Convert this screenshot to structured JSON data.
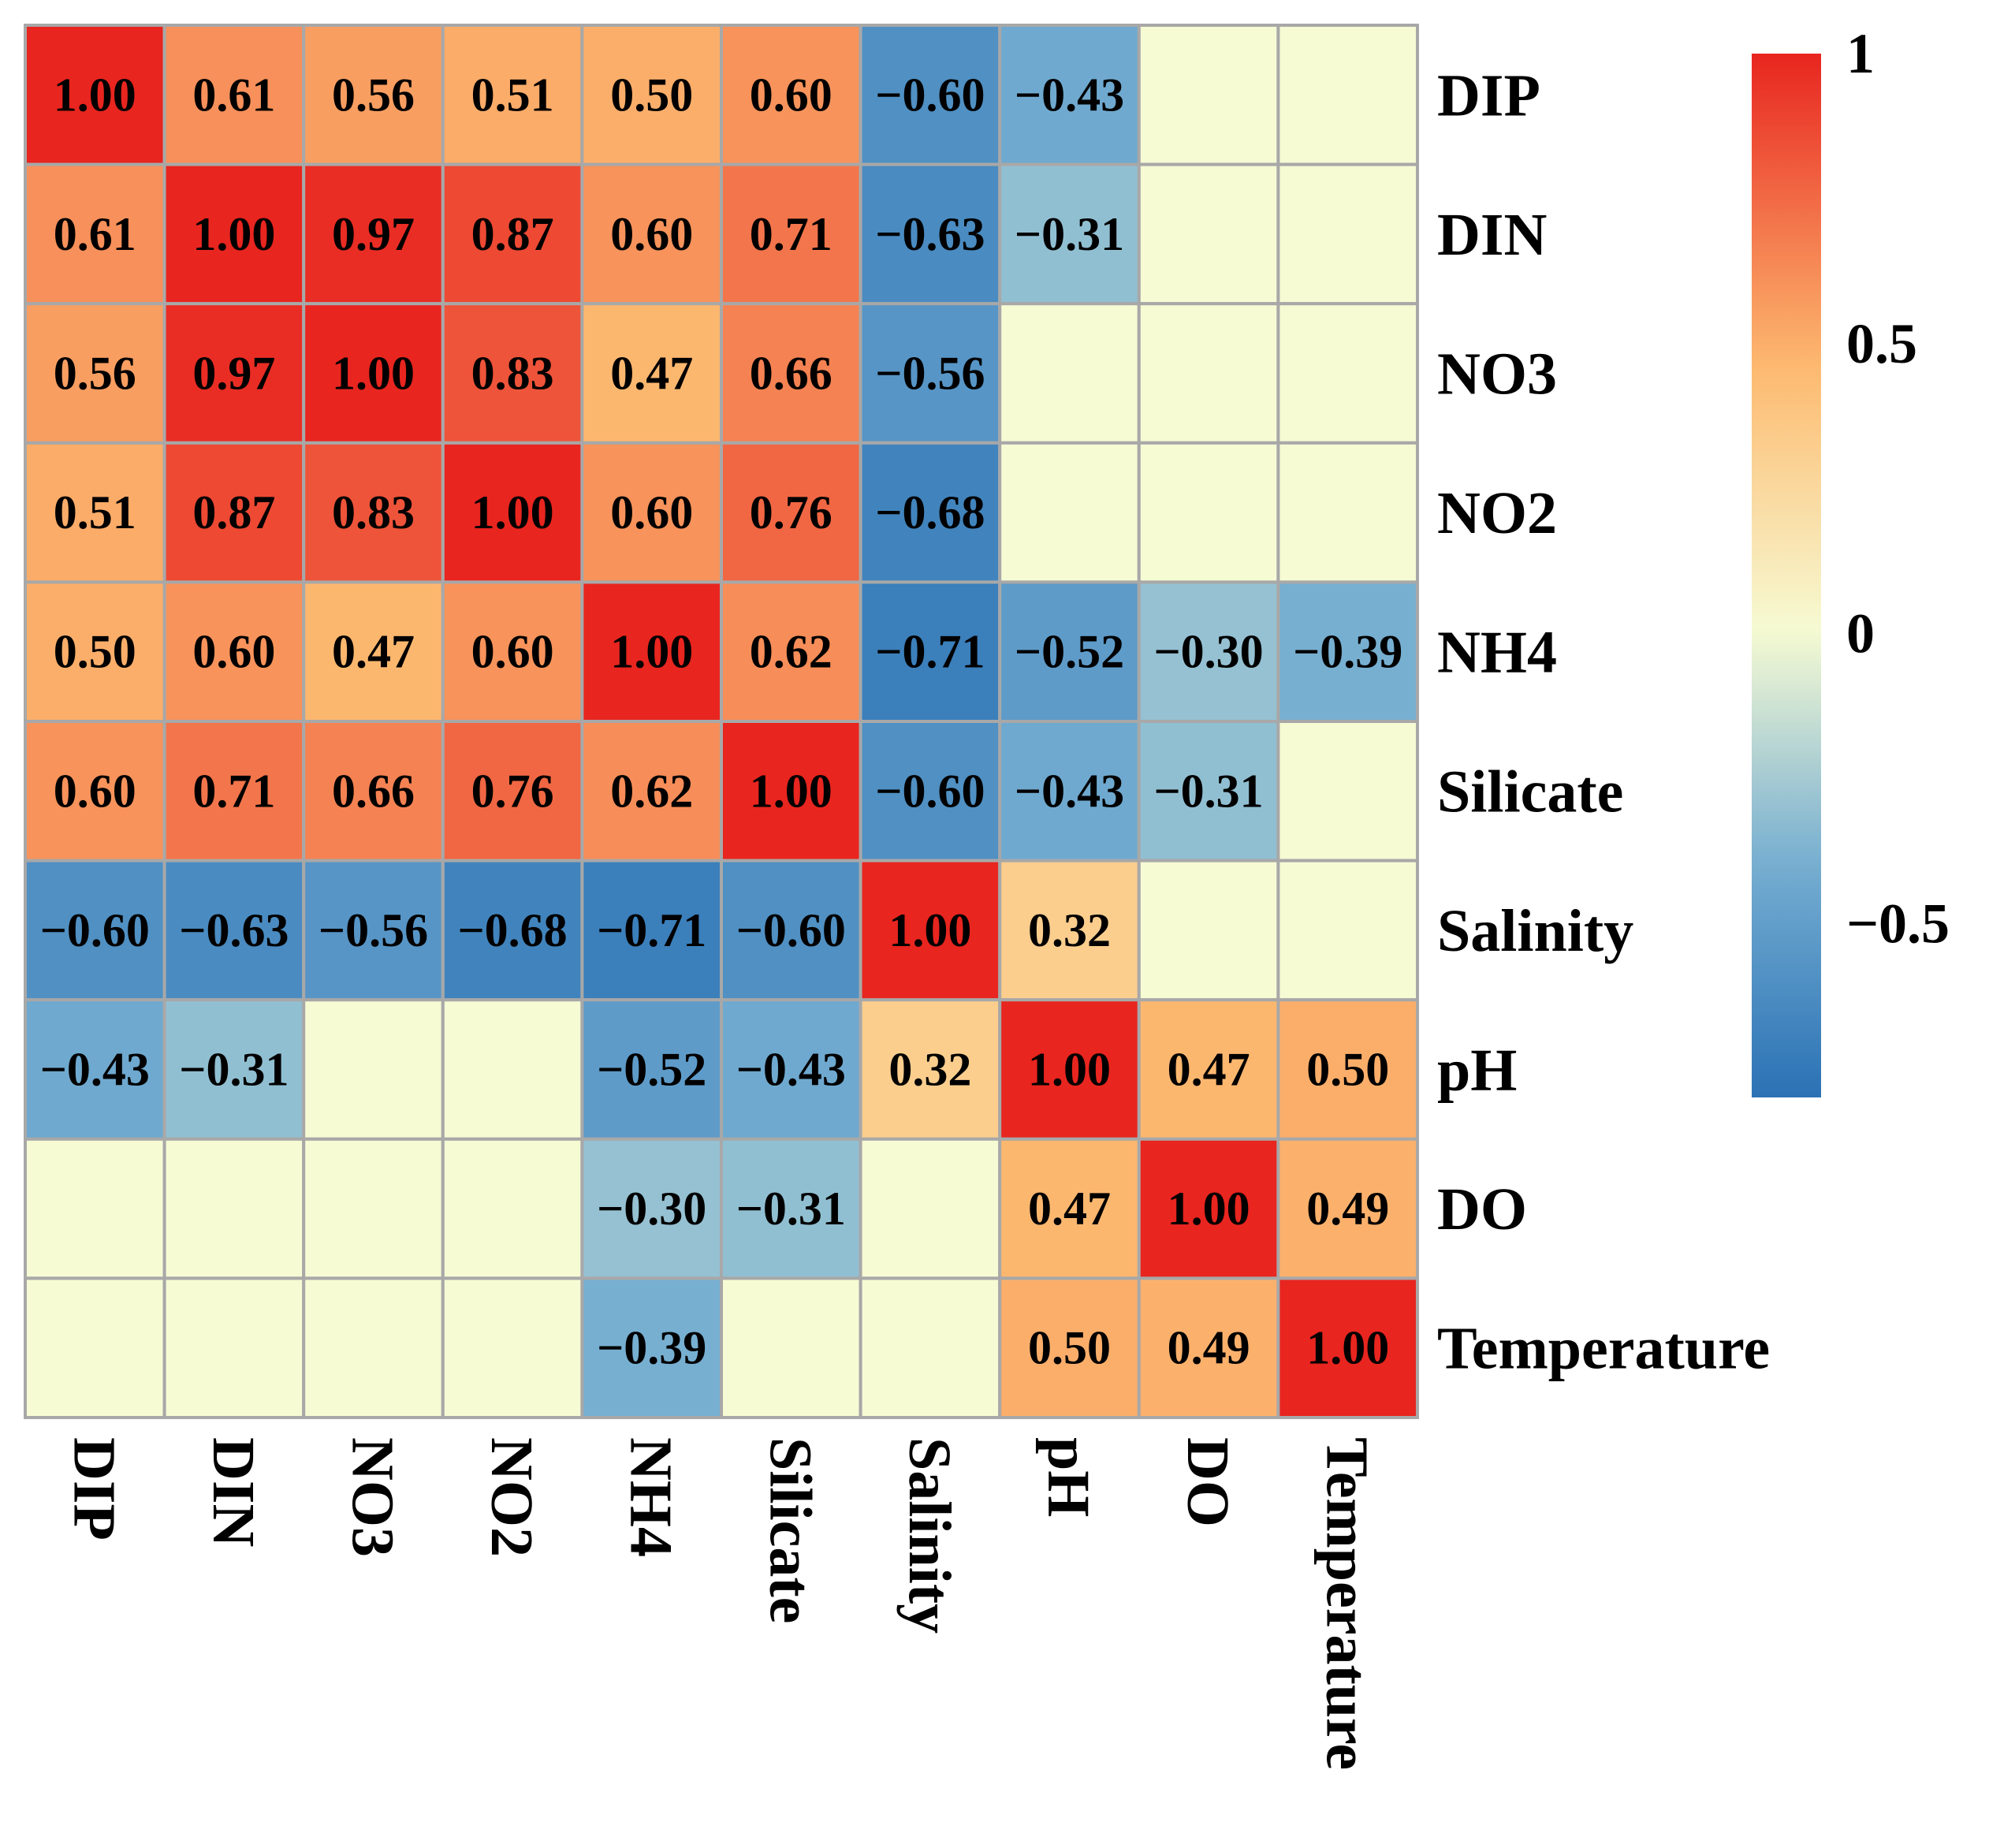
{
  "chart_data": {
    "type": "heatmap",
    "title": "",
    "variables": [
      "DIP",
      "DIN",
      "NO3",
      "NO2",
      "NH4",
      "Silicate",
      "Salinity",
      "pH",
      "DO",
      "Temperature"
    ],
    "matrix": [
      [
        1.0,
        0.61,
        0.56,
        0.51,
        0.5,
        0.6,
        -0.6,
        -0.43,
        null,
        null
      ],
      [
        0.61,
        1.0,
        0.97,
        0.87,
        0.6,
        0.71,
        -0.63,
        -0.31,
        null,
        null
      ],
      [
        0.56,
        0.97,
        1.0,
        0.83,
        0.47,
        0.66,
        -0.56,
        null,
        null,
        null
      ],
      [
        0.51,
        0.87,
        0.83,
        1.0,
        0.6,
        0.76,
        -0.68,
        null,
        null,
        null
      ],
      [
        0.5,
        0.6,
        0.47,
        0.6,
        1.0,
        0.62,
        -0.71,
        -0.52,
        -0.3,
        -0.39
      ],
      [
        0.6,
        0.71,
        0.66,
        0.76,
        0.62,
        1.0,
        -0.6,
        -0.43,
        -0.31,
        null
      ],
      [
        -0.6,
        -0.63,
        -0.56,
        -0.68,
        -0.71,
        -0.6,
        1.0,
        0.32,
        null,
        null
      ],
      [
        -0.43,
        -0.31,
        null,
        null,
        -0.52,
        -0.43,
        0.32,
        1.0,
        0.47,
        0.5
      ],
      [
        null,
        null,
        null,
        null,
        -0.3,
        -0.31,
        null,
        0.47,
        1.0,
        0.49
      ],
      [
        null,
        null,
        null,
        null,
        -0.39,
        null,
        null,
        0.5,
        0.49,
        1.0
      ]
    ],
    "cell_labels": [
      [
        "1.00",
        "0.61",
        "0.56",
        "0.51",
        "0.50",
        "0.60",
        "−0.60",
        "−0.43",
        "",
        ""
      ],
      [
        "0.61",
        "1.00",
        "0.97",
        "0.87",
        "0.60",
        "0.71",
        "−0.63",
        "−0.31",
        "",
        ""
      ],
      [
        "0.56",
        "0.97",
        "1.00",
        "0.83",
        "0.47",
        "0.66",
        "−0.56",
        "",
        "",
        ""
      ],
      [
        "0.51",
        "0.87",
        "0.83",
        "1.00",
        "0.60",
        "0.76",
        "−0.68",
        "",
        "",
        ""
      ],
      [
        "0.50",
        "0.60",
        "0.47",
        "0.60",
        "1.00",
        "0.62",
        "−0.71",
        "−0.52",
        "−0.30",
        "−0.39"
      ],
      [
        "0.60",
        "0.71",
        "0.66",
        "0.76",
        "0.62",
        "1.00",
        "−0.60",
        "−0.43",
        "−0.31",
        ""
      ],
      [
        "−0.60",
        "−0.63",
        "−0.56",
        "−0.68",
        "−0.71",
        "−0.60",
        "1.00",
        "0.32",
        "",
        ""
      ],
      [
        "−0.43",
        "−0.31",
        "",
        "",
        "−0.52",
        "−0.43",
        "0.32",
        "1.00",
        "0.47",
        "0.50"
      ],
      [
        "",
        "",
        "",
        "",
        "−0.30",
        "−0.31",
        "",
        "0.47",
        "1.00",
        "0.49"
      ],
      [
        "",
        "",
        "",
        "",
        "−0.39",
        "",
        "",
        "0.50",
        "0.49",
        "1.00"
      ]
    ],
    "colorbar": {
      "range": [
        -0.8,
        1.0
      ],
      "ticks": [
        1,
        0.5,
        0,
        -0.5
      ],
      "tick_labels": [
        "1",
        "0.5",
        "0",
        "−0.5"
      ],
      "colors": {
        "negative_end": "#2b72b5",
        "negative_mid": "#74add1",
        "near_zero": "#f6fbd4",
        "positive_mid": "#fdbc72",
        "positive_end": "#e8251f"
      }
    },
    "grid": true,
    "legend": "right",
    "xlabel": "",
    "ylabel": ""
  }
}
